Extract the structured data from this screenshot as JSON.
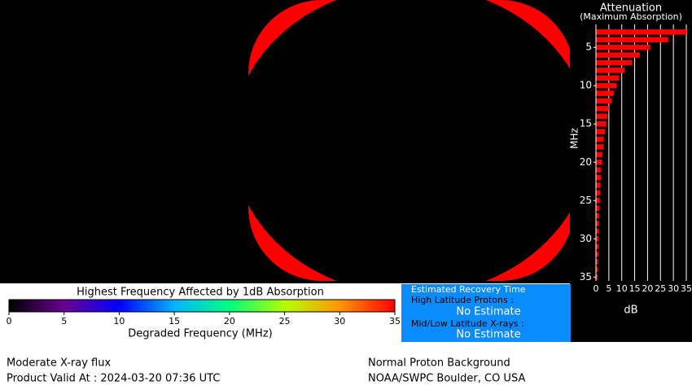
{
  "chart_data": {
    "type": "bar",
    "orientation": "horizontal",
    "title": "Attenuation",
    "subtitle": "(Maximum Absorption)",
    "y_label": "MHz",
    "x_label": "dB",
    "y": [
      3,
      4,
      5,
      6,
      7,
      8,
      9,
      10,
      11,
      12,
      13,
      14,
      15,
      16,
      17,
      18,
      19,
      20,
      21,
      22,
      23,
      24,
      25,
      26,
      27,
      28,
      29,
      30,
      31,
      32,
      33,
      34,
      35
    ],
    "values": [
      35,
      28,
      21,
      17,
      14,
      11,
      9,
      8,
      7,
      6,
      5,
      4.5,
      4,
      3.5,
      3,
      3,
      2.5,
      2.3,
      2,
      2,
      1.8,
      1.6,
      1.5,
      1.4,
      1.3,
      1.2,
      1.1,
      1,
      1,
      0.9,
      0.8,
      0.8,
      0.7
    ],
    "color": "#ff0000",
    "xlim": [
      0,
      35
    ],
    "xticks": [
      0,
      5,
      10,
      15,
      20,
      25,
      30,
      35
    ],
    "ylim": [
      2,
      35.5
    ],
    "yticks": [
      5,
      10,
      15,
      20,
      25,
      30,
      35
    ],
    "grid": true
  },
  "colorbar": {
    "title": "Highest Frequency Affected by 1dB Absorption",
    "label": "Degraded Frequency (MHz)",
    "lim": [
      0,
      35
    ],
    "ticks": [
      0,
      5,
      10,
      15,
      20,
      25,
      30,
      35
    ],
    "colors": [
      "#000000",
      "#6a0090",
      "#0000ff",
      "#00b4ff",
      "#00ff80",
      "#b4ff00",
      "#ff9600",
      "#ff0000"
    ]
  },
  "recovery": {
    "title": "Estimated Recovery Time",
    "high_label": "High Latitude Protons :",
    "high_value": "No Estimate",
    "low_label": "Mid/Low Latitude X-rays :",
    "low_value": "No Estimate"
  },
  "footer": {
    "xray": "Moderate X-ray flux",
    "valid": "Product Valid At : 2024-03-20 07:36 UTC",
    "proton": "Normal Proton Background",
    "source": "NOAA/SWPC Boulder, CO USA"
  }
}
